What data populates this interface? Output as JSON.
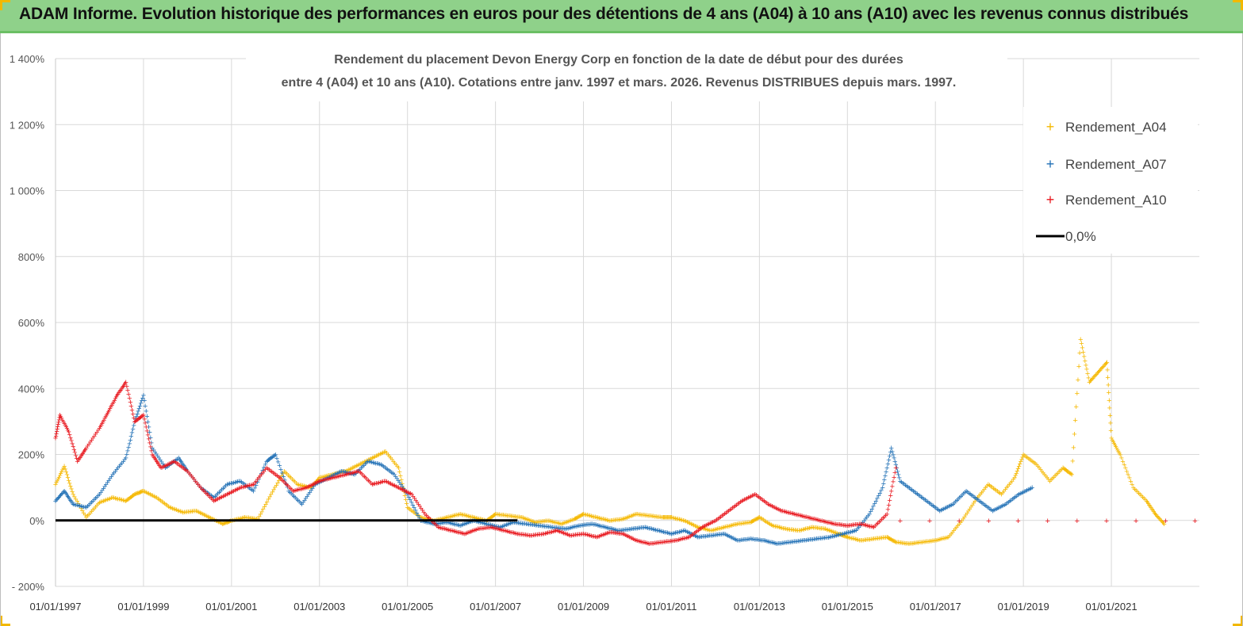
{
  "banner": {
    "title": "ADAM Informe. Evolution historique des performances en euros pour des détentions de 4 ans (A04) à 10 ans (A10) avec les revenus connus distribués"
  },
  "colors": {
    "banner": "#8fd18a",
    "corner": "#f2b800",
    "A04": "#f5b800",
    "A07": "#1f6fb5",
    "A10": "#e8141b",
    "zero": "#000000",
    "grid": "#d9d9d9"
  },
  "chart_data": {
    "type": "scatter",
    "title_line1": "Rendement du placement Devon Energy Corp en fonction de la date de début pour des durées",
    "title_line2": "entre 4 (A04) et 10 ans (A10). Cotations entre janv. 1997 et mars. 2026. Revenus DISTRIBUES depuis mars. 1997.",
    "ylim": [
      -200,
      1400
    ],
    "yticks": [
      -200,
      0,
      200,
      400,
      600,
      800,
      1000,
      1200,
      1400
    ],
    "ytick_labels": [
      "- 200%",
      "0%",
      "200%",
      "400%",
      "600%",
      "800%",
      "1 000%",
      "1 200%",
      "1 400%"
    ],
    "xlim": [
      1997.0,
      2023.0
    ],
    "xticks": [
      1997,
      1999,
      2001,
      2003,
      2005,
      2007,
      2009,
      2011,
      2013,
      2015,
      2017,
      2019,
      2021
    ],
    "xtick_labels": [
      "01/01/1997",
      "01/01/1999",
      "01/01/2001",
      "01/01/2003",
      "01/01/2005",
      "01/01/2007",
      "01/01/2009",
      "01/01/2011",
      "01/01/2013",
      "01/01/2015",
      "01/01/2017",
      "01/01/2019",
      "01/01/2021"
    ],
    "grid": true,
    "legend_position": "top-right",
    "legend": [
      "Rendement_A04",
      "Rendement_A07",
      "Rendement_A10",
      "0,0%"
    ],
    "series": [
      {
        "name": "Rendement_A04",
        "x": [
          1997.0,
          1997.2,
          1997.4,
          1997.7,
          1998.0,
          1998.3,
          1998.6,
          1998.8,
          1999.0,
          1999.3,
          1999.6,
          1999.9,
          2000.2,
          2000.5,
          2000.8,
          2001.0,
          2001.3,
          2001.6,
          2001.9,
          2002.2,
          2002.5,
          2002.8,
          2003.0,
          2003.3,
          2003.6,
          2003.9,
          2004.2,
          2004.5,
          2004.8,
          2005.0,
          2005.3,
          2005.6,
          2005.9,
          2006.2,
          2006.5,
          2006.8,
          2007.0,
          2007.3,
          2007.6,
          2007.9,
          2008.2,
          2008.5,
          2008.8,
          2009.0,
          2009.3,
          2009.6,
          2009.9,
          2010.2,
          2010.5,
          2010.8,
          2011.0,
          2011.3,
          2011.6,
          2011.9,
          2012.2,
          2012.5,
          2012.8,
          2013.0,
          2013.3,
          2013.6,
          2013.9,
          2014.2,
          2014.5,
          2014.8,
          2015.0,
          2015.3,
          2015.6,
          2015.9,
          2016.1,
          2016.4,
          2016.7,
          2017.0,
          2017.3,
          2017.6,
          2017.9,
          2018.2,
          2018.5,
          2018.8,
          2019.0,
          2019.3,
          2019.6,
          2019.9,
          2020.1,
          2020.3,
          2020.5,
          2020.7,
          2020.9,
          2021.0,
          2021.2,
          2021.5,
          2021.8,
          2022.0,
          2022.2
        ],
        "y": [
          110,
          165,
          80,
          10,
          55,
          70,
          60,
          80,
          90,
          70,
          40,
          25,
          30,
          10,
          -10,
          0,
          10,
          5,
          80,
          150,
          110,
          100,
          130,
          140,
          150,
          170,
          190,
          210,
          160,
          40,
          10,
          0,
          10,
          20,
          10,
          0,
          20,
          15,
          10,
          -5,
          0,
          -10,
          5,
          20,
          10,
          0,
          5,
          20,
          15,
          10,
          10,
          0,
          -20,
          -30,
          -20,
          -10,
          -5,
          10,
          -15,
          -25,
          -30,
          -20,
          -25,
          -40,
          -50,
          -60,
          -55,
          -50,
          -65,
          -70,
          -65,
          -60,
          -50,
          0,
          60,
          110,
          80,
          130,
          200,
          170,
          120,
          160,
          140,
          550,
          420,
          450,
          480,
          250,
          200,
          100,
          60,
          20,
          -10
        ]
      },
      {
        "name": "Rendement_A07",
        "x": [
          1997.0,
          1997.2,
          1997.4,
          1997.7,
          1998.0,
          1998.3,
          1998.6,
          1998.8,
          1999.0,
          1999.2,
          1999.5,
          1999.8,
          2000.0,
          2000.3,
          2000.6,
          2000.9,
          2001.2,
          2001.5,
          2001.8,
          2002.0,
          2002.3,
          2002.6,
          2002.9,
          2003.2,
          2003.5,
          2003.8,
          2004.1,
          2004.4,
          2004.7,
          2005.0,
          2005.3,
          2005.6,
          2005.9,
          2006.2,
          2006.5,
          2006.8,
          2007.1,
          2007.4,
          2007.7,
          2008.0,
          2008.3,
          2008.6,
          2008.9,
          2009.2,
          2009.5,
          2009.8,
          2010.1,
          2010.4,
          2010.7,
          2011.0,
          2011.3,
          2011.6,
          2011.9,
          2012.2,
          2012.5,
          2012.8,
          2013.1,
          2013.4,
          2013.7,
          2014.0,
          2014.3,
          2014.6,
          2014.9,
          2015.2,
          2015.5,
          2015.8,
          2016.0,
          2016.2,
          2016.5,
          2016.8,
          2017.1,
          2017.4,
          2017.7,
          2018.0,
          2018.3,
          2018.6,
          2018.9,
          2019.2
        ],
        "y": [
          60,
          90,
          50,
          40,
          80,
          140,
          190,
          300,
          380,
          220,
          160,
          190,
          150,
          100,
          70,
          110,
          120,
          90,
          180,
          200,
          90,
          50,
          110,
          130,
          150,
          140,
          180,
          170,
          140,
          80,
          0,
          -10,
          -5,
          -15,
          0,
          -10,
          -20,
          -5,
          -10,
          -15,
          -20,
          -25,
          -15,
          -10,
          -20,
          -30,
          -25,
          -20,
          -30,
          -40,
          -30,
          -50,
          -45,
          -40,
          -60,
          -55,
          -60,
          -70,
          -65,
          -60,
          -55,
          -50,
          -40,
          -30,
          20,
          100,
          220,
          120,
          90,
          60,
          30,
          50,
          90,
          60,
          30,
          50,
          80,
          100
        ]
      },
      {
        "name": "Rendement_A10",
        "x": [
          1997.0,
          1997.1,
          1997.3,
          1997.5,
          1997.7,
          1998.0,
          1998.2,
          1998.4,
          1998.6,
          1998.8,
          1999.0,
          1999.2,
          1999.4,
          1999.7,
          2000.0,
          2000.3,
          2000.6,
          2000.9,
          2001.2,
          2001.5,
          2001.8,
          2002.1,
          2002.4,
          2002.7,
          2003.0,
          2003.3,
          2003.6,
          2003.9,
          2004.2,
          2004.5,
          2004.8,
          2005.1,
          2005.4,
          2005.7,
          2006.0,
          2006.3,
          2006.6,
          2006.9,
          2007.2,
          2007.5,
          2007.8,
          2008.1,
          2008.4,
          2008.7,
          2009.0,
          2009.3,
          2009.6,
          2009.9,
          2010.2,
          2010.5,
          2010.8,
          2011.1,
          2011.4,
          2011.7,
          2012.0,
          2012.3,
          2012.6,
          2012.9,
          2013.2,
          2013.5,
          2013.8,
          2014.1,
          2014.4,
          2014.7,
          2015.0,
          2015.3,
          2015.6,
          2015.9,
          2016.1
        ],
        "y": [
          250,
          320,
          270,
          180,
          220,
          280,
          330,
          380,
          420,
          300,
          320,
          200,
          160,
          180,
          150,
          100,
          60,
          80,
          100,
          110,
          160,
          130,
          90,
          100,
          120,
          130,
          140,
          150,
          110,
          120,
          100,
          80,
          20,
          -20,
          -30,
          -40,
          -25,
          -20,
          -30,
          -40,
          -45,
          -40,
          -30,
          -45,
          -40,
          -50,
          -35,
          -40,
          -60,
          -70,
          -65,
          -60,
          -50,
          -20,
          0,
          30,
          60,
          80,
          50,
          30,
          20,
          10,
          0,
          -10,
          -15,
          -10,
          -20,
          20,
          160
        ]
      },
      {
        "name": "Rendement_A10",
        "x": [
          2016.2,
          2022.9
        ],
        "y": [
          0,
          0
        ]
      }
    ]
  }
}
